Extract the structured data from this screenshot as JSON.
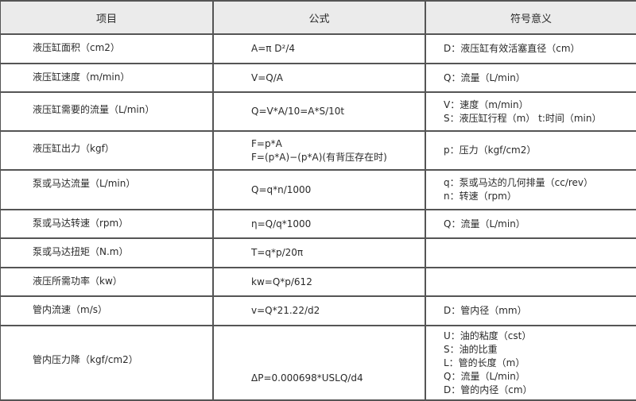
{
  "headers": [
    "项目",
    "公式",
    "符号意义"
  ],
  "rows": [
    {
      "item": "液压缸面积（cm2）",
      "formula": [
        "A=π D²/4"
      ],
      "meaning": [
        "D：液压缸有效活塞直径（cm）"
      ]
    },
    {
      "item": "液压缸速度（m/min）",
      "formula": [
        "V=Q/A"
      ],
      "meaning": [
        "Q：流量（L/min）"
      ]
    },
    {
      "item": "液压缸需要的流量（L/min）",
      "formula": [
        "Q=V*A/10=A*S/10t"
      ],
      "meaning": [
        "V：速度（m/min）",
        "S：液压缸行程（m） t:时间（min）"
      ]
    },
    {
      "item": "液压缸出力（kgf）",
      "formula": [
        "F=p*A",
        "F=(p*A)−(p*A)(有背压存在时)"
      ],
      "meaning": [
        "p：压力（kgf/cm2）"
      ]
    },
    {
      "item": "泵或马达流量（L/min）",
      "formula": [
        "Q=q*n/1000"
      ],
      "meaning": [
        "q：泵或马达的几何排量（cc/rev）",
        "n：转速（rpm）"
      ]
    },
    {
      "item": "泵或马达转速（rpm）",
      "formula": [
        "η=Q/q*1000"
      ],
      "meaning": [
        "Q：流量（L/min）"
      ]
    },
    {
      "item": "泵或马达扭矩（N.m）",
      "formula": [
        "T=q*p/20π"
      ],
      "meaning": []
    },
    {
      "item": "液压所需功率（kw）",
      "formula": [
        "kw=Q*p/612"
      ],
      "meaning": []
    },
    {
      "item": "管内流速（m/s）",
      "formula": [
        "v=Q*21.22/d2"
      ],
      "meaning": [
        "D：管内径（mm）"
      ]
    },
    {
      "item": "管内压力降（kgf/cm2）",
      "formula": [
        "ΔP=0.000698*USLQ/d4"
      ],
      "meaning": [
        "U：油的粘度（cst）",
        "S：油的比重",
        "L：管的长度（m）",
        "Q：流量（L/min）",
        "D：管的内径（cm）"
      ]
    }
  ]
}
